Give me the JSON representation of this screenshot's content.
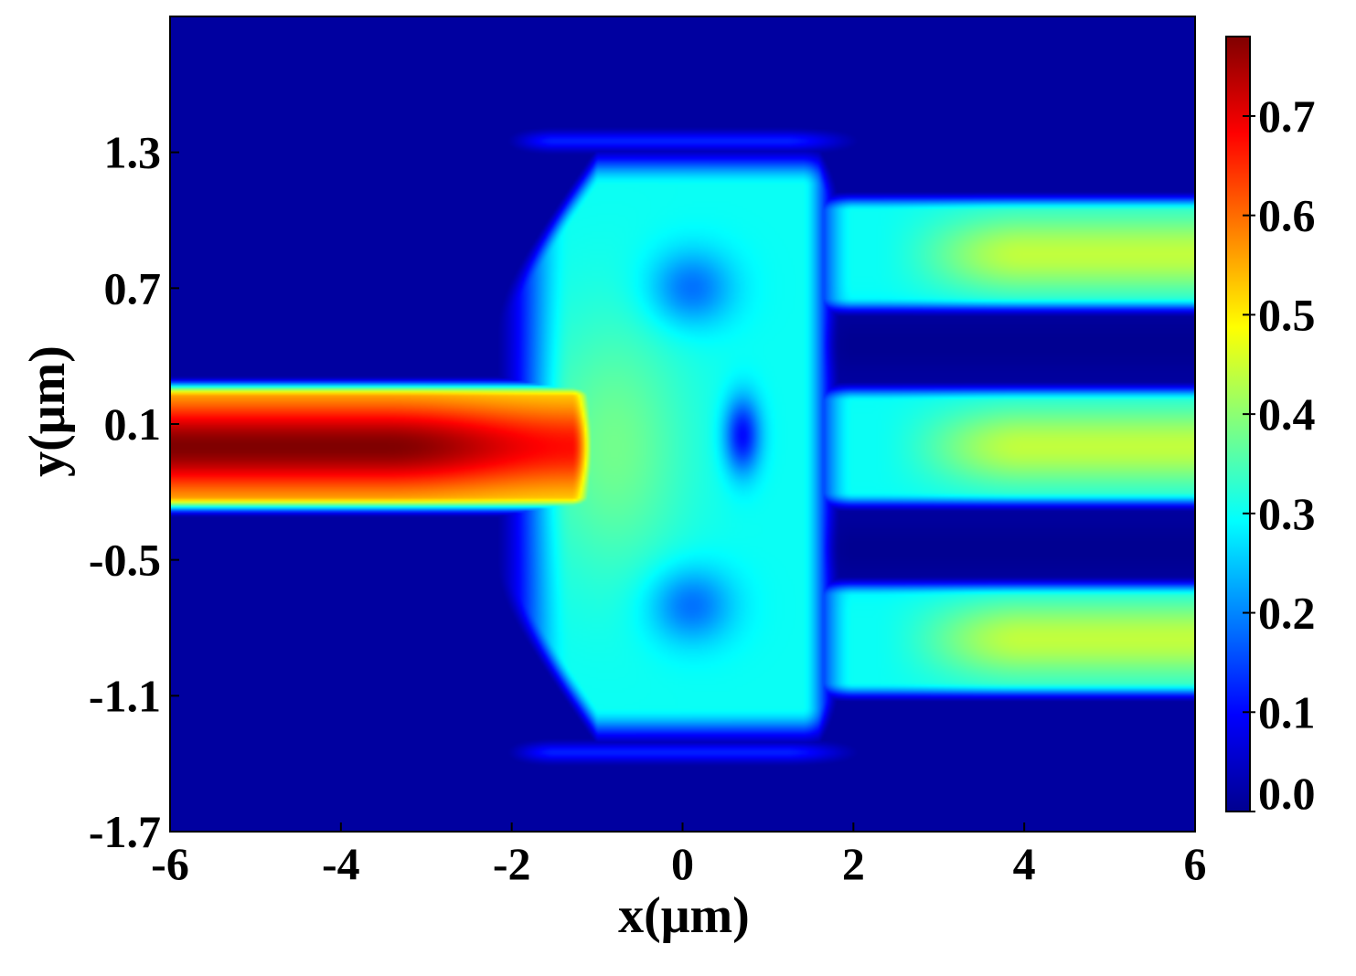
{
  "chart_data": {
    "type": "heatmap",
    "title": "",
    "xlabel": "x(μm)",
    "ylabel": "y(μm)",
    "xlim": [
      -6,
      6
    ],
    "ylim": [
      -1.7,
      1.9
    ],
    "x_ticks": [
      -6,
      -4,
      -2,
      0,
      2,
      4,
      6
    ],
    "x_tick_labels": [
      "-6",
      "-4",
      "-2",
      "0",
      "2",
      "4",
      "6"
    ],
    "y_ticks": [
      -1.7,
      -1.1,
      -0.5,
      0.1,
      0.7,
      1.3
    ],
    "y_tick_labels": [
      "-1.7",
      "-1.1",
      "-0.5",
      "0.1",
      "0.7",
      "1.3"
    ],
    "colorbar": {
      "min": 0.0,
      "max": 0.78,
      "ticks": [
        0.0,
        0.1,
        0.2,
        0.3,
        0.4,
        0.5,
        0.6,
        0.7
      ],
      "tick_labels": [
        "0.0",
        "0.1",
        "0.2",
        "0.3",
        "0.4",
        "0.5",
        "0.6",
        "0.7"
      ],
      "colormap": "jet"
    },
    "field_description_values": {
      "input_waveguide": {
        "x_range": [
          -6,
          -1
        ],
        "y_center": 0.0,
        "peak_value": 0.78
      },
      "output_branches": [
        {
          "y_center": 0.85,
          "x_range": [
            2,
            6
          ],
          "value": 0.42
        },
        {
          "y_center": 0.0,
          "x_range": [
            2,
            6
          ],
          "value": 0.45
        },
        {
          "y_center": -0.85,
          "x_range": [
            2,
            6
          ],
          "value": 0.42
        }
      ]
    }
  },
  "colors": {
    "background_field": "#00008f",
    "peak": "#800000"
  }
}
